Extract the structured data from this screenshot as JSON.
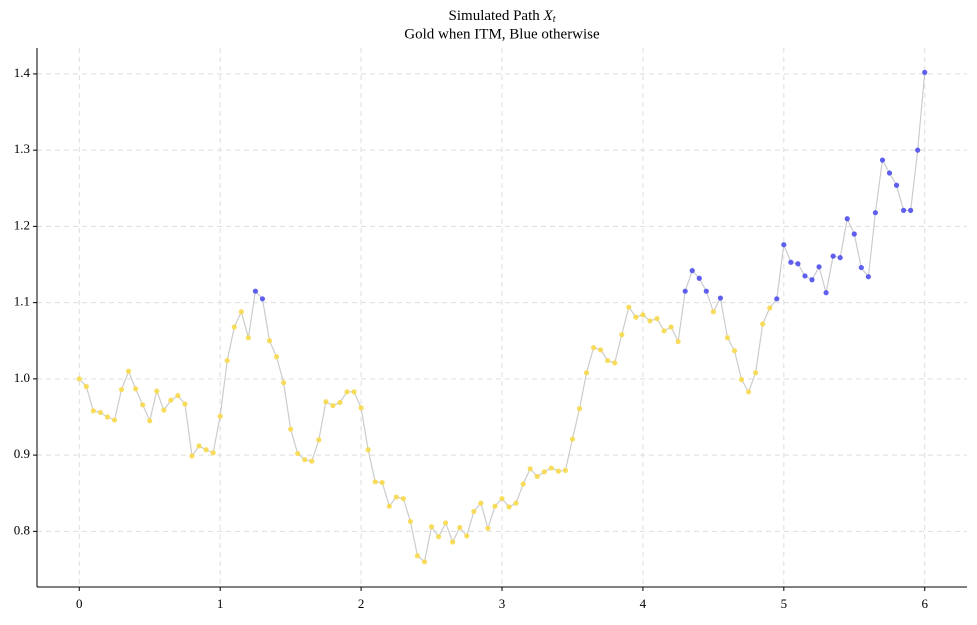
{
  "chart_data": {
    "type": "line",
    "title": "Simulated Path",
    "title_math": "X",
    "title_math_sub": "t",
    "subtitle": "Gold when ITM, Blue otherwise",
    "x": [
      0,
      0.05,
      0.1,
      0.15,
      0.2,
      0.25,
      0.3,
      0.35,
      0.4,
      0.45,
      0.5,
      0.55,
      0.6,
      0.65,
      0.7,
      0.75,
      0.8,
      0.85,
      0.9,
      0.95,
      1,
      1.05,
      1.1,
      1.15,
      1.2,
      1.25,
      1.3,
      1.35,
      1.4,
      1.45,
      1.5,
      1.55,
      1.6,
      1.65,
      1.7,
      1.75,
      1.8,
      1.85,
      1.9,
      1.95,
      2,
      2.05,
      2.1,
      2.15,
      2.2,
      2.25,
      2.3,
      2.35,
      2.4,
      2.45,
      2.5,
      2.55,
      2.6,
      2.65,
      2.7,
      2.75,
      2.8,
      2.85,
      2.9,
      2.95,
      3,
      3.05,
      3.1,
      3.15,
      3.2,
      3.25,
      3.3,
      3.35,
      3.4,
      3.45,
      3.5,
      3.55,
      3.6,
      3.65,
      3.7,
      3.75,
      3.8,
      3.85,
      3.9,
      3.95,
      4,
      4.05,
      4.1,
      4.15,
      4.2,
      4.25,
      4.3,
      4.35,
      4.4,
      4.45,
      4.5,
      4.55,
      4.6,
      4.65,
      4.7,
      4.75,
      4.8,
      4.85,
      4.9,
      4.95,
      5,
      5.05,
      5.1,
      5.15,
      5.2,
      5.25,
      5.3,
      5.35,
      5.4,
      5.45,
      5.5,
      5.55,
      5.6,
      5.65,
      5.7,
      5.75,
      5.8,
      5.85,
      5.9,
      5.95,
      6
    ],
    "values": [
      1.0,
      0.99,
      0.958,
      0.956,
      0.95,
      0.946,
      0.986,
      1.01,
      0.987,
      0.966,
      0.945,
      0.984,
      0.959,
      0.972,
      0.978,
      0.967,
      0.899,
      0.912,
      0.907,
      0.903,
      0.951,
      1.024,
      1.068,
      1.088,
      1.054,
      1.115,
      1.105,
      1.05,
      1.029,
      0.995,
      0.934,
      0.902,
      0.894,
      0.892,
      0.92,
      0.97,
      0.965,
      0.969,
      0.983,
      0.983,
      0.962,
      0.907,
      0.865,
      0.864,
      0.833,
      0.845,
      0.843,
      0.813,
      0.768,
      0.76,
      0.806,
      0.793,
      0.811,
      0.786,
      0.805,
      0.794,
      0.826,
      0.837,
      0.804,
      0.833,
      0.843,
      0.832,
      0.837,
      0.862,
      0.882,
      0.872,
      0.878,
      0.883,
      0.879,
      0.88,
      0.921,
      0.961,
      1.008,
      1.041,
      1.038,
      1.024,
      1.021,
      1.058,
      1.094,
      1.081,
      1.084,
      1.076,
      1.079,
      1.063,
      1.068,
      1.049,
      1.115,
      1.142,
      1.132,
      1.115,
      1.088,
      1.106,
      1.054,
      1.037,
      0.999,
      0.983,
      1.008,
      1.072,
      1.093,
      1.105,
      1.176,
      1.153,
      1.151,
      1.135,
      1.13,
      1.147,
      1.113,
      1.161,
      1.159,
      1.21,
      1.19,
      1.146,
      1.134,
      1.218,
      1.287,
      1.27,
      1.254,
      1.221,
      1.221,
      1.3,
      1.402
    ],
    "marker_colors": [
      "#f8d94e",
      "#f8d94e",
      "#f8d94e",
      "#f8d94e",
      "#f8d94e",
      "#f8d94e",
      "#f8d94e",
      "#f8d94e",
      "#f8d94e",
      "#f8d94e",
      "#f8d94e",
      "#f8d94e",
      "#f8d94e",
      "#f8d94e",
      "#f8d94e",
      "#f8d94e",
      "#f8d94e",
      "#f8d94e",
      "#f8d94e",
      "#f8d94e",
      "#f8d94e",
      "#f8d94e",
      "#f8d94e",
      "#f8d94e",
      "#f8d94e",
      "#5050f0",
      "#5050f0",
      "#f8d94e",
      "#f8d94e",
      "#f8d94e",
      "#f8d94e",
      "#f8d94e",
      "#f8d94e",
      "#f8d94e",
      "#f8d94e",
      "#f8d94e",
      "#f8d94e",
      "#f8d94e",
      "#f8d94e",
      "#f8d94e",
      "#f8d94e",
      "#f8d94e",
      "#f8d94e",
      "#f8d94e",
      "#f8d94e",
      "#f8d94e",
      "#f8d94e",
      "#f8d94e",
      "#f8d94e",
      "#f8d94e",
      "#f8d94e",
      "#f8d94e",
      "#f8d94e",
      "#f8d94e",
      "#f8d94e",
      "#f8d94e",
      "#f8d94e",
      "#f8d94e",
      "#f8d94e",
      "#f8d94e",
      "#f8d94e",
      "#f8d94e",
      "#f8d94e",
      "#f8d94e",
      "#f8d94e",
      "#f8d94e",
      "#f8d94e",
      "#f8d94e",
      "#f8d94e",
      "#f8d94e",
      "#f8d94e",
      "#f8d94e",
      "#f8d94e",
      "#f8d94e",
      "#f8d94e",
      "#f8d94e",
      "#f8d94e",
      "#f8d94e",
      "#f8d94e",
      "#f8d94e",
      "#f8d94e",
      "#f8d94e",
      "#f8d94e",
      "#f8d94e",
      "#f8d94e",
      "#f8d94e",
      "#5050f0",
      "#5050f0",
      "#5050f0",
      "#5050f0",
      "#f8d94e",
      "#5050f0",
      "#f8d94e",
      "#f8d94e",
      "#f8d94e",
      "#f8d94e",
      "#f8d94e",
      "#f8d94e",
      "#f8d94e",
      "#5050f0",
      "#5050f0",
      "#5050f0",
      "#5050f0",
      "#5050f0",
      "#5050f0",
      "#5050f0",
      "#5050f0",
      "#5050f0",
      "#5050f0",
      "#5050f0",
      "#5050f0",
      "#5050f0",
      "#5050f0",
      "#5050f0",
      "#5050f0",
      "#5050f0",
      "#5050f0",
      "#5050f0",
      "#5050f0",
      "#5050f0",
      "#5050f0"
    ],
    "line_color": "#cccccc",
    "xlim": [
      -0.3,
      6.3
    ],
    "xticks": [
      0,
      1,
      2,
      3,
      4,
      5,
      6
    ],
    "ylim": [
      0.727,
      1.434
    ],
    "yticks": [
      0.8,
      0.9,
      {
        "value": 1,
        "label": "1.0"
      },
      1.1,
      1.2,
      1.3,
      1.4
    ],
    "grid": true
  }
}
